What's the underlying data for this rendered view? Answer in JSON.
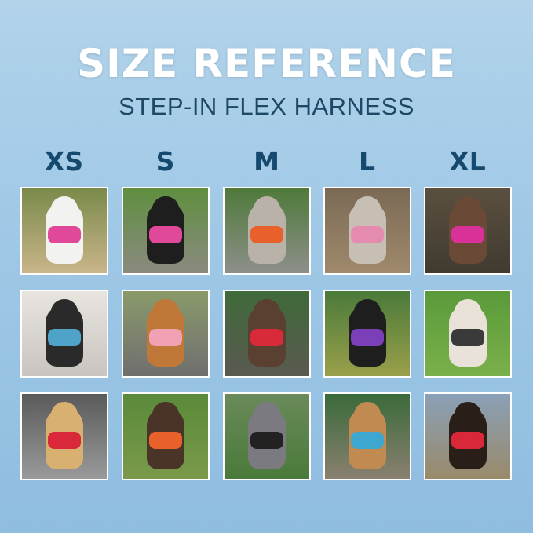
{
  "header": {
    "title": "SIZE REFERENCE",
    "subtitle": "STEP-IN FLEX HARNESS"
  },
  "sizes": [
    "XS",
    "S",
    "M",
    "L",
    "XL"
  ],
  "photos": [
    [
      {
        "harness": "#e0489a"
      },
      {
        "harness": "#e0489a"
      },
      {
        "harness": "#e8612a"
      },
      {
        "harness": "#e58bb0"
      },
      {
        "harness": "#d8329a"
      }
    ],
    [
      {
        "harness": "#4fa3c8"
      },
      {
        "harness": "#f0a2b4"
      },
      {
        "harness": "#d92a3a"
      },
      {
        "harness": "#7b3fb8"
      },
      {
        "harness": "#3a3a3a"
      }
    ],
    [
      {
        "harness": "#d9283a"
      },
      {
        "harness": "#e8612a"
      },
      {
        "harness": "#222222"
      },
      {
        "harness": "#3ea7d0"
      },
      {
        "harness": "#d9283a"
      }
    ]
  ]
}
